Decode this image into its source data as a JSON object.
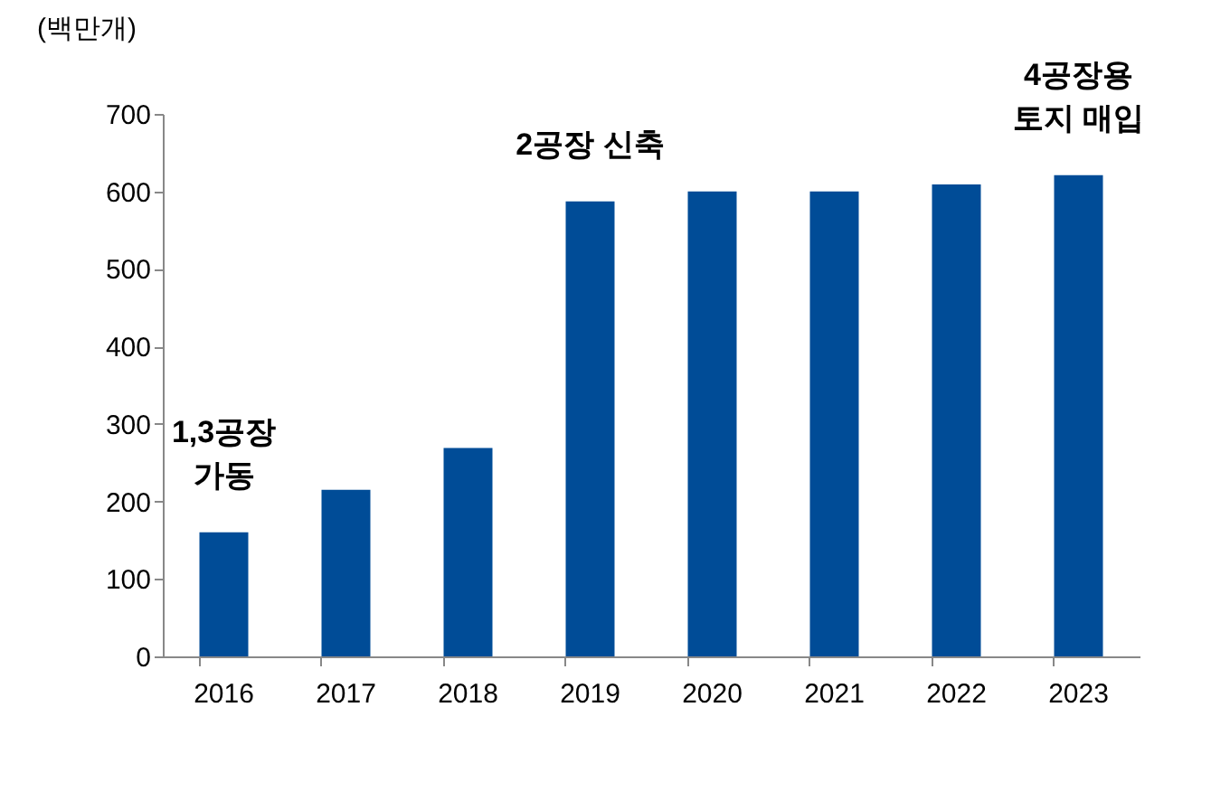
{
  "chart_data": {
    "type": "bar",
    "ylabel": "(백만개)",
    "categories": [
      "2016",
      "2017",
      "2018",
      "2019",
      "2020",
      "2021",
      "2022",
      "2023"
    ],
    "values": [
      160,
      215,
      269,
      587,
      600,
      600,
      609,
      621
    ],
    "color": "#004c97",
    "ylim": [
      0,
      700
    ],
    "yticks": [
      0,
      100,
      200,
      300,
      400,
      500,
      600,
      700
    ],
    "grid": false,
    "annotations": [
      {
        "text": "1,3공장\n가동",
        "x": "2016",
        "y": 160
      },
      {
        "text": "2공장 신축",
        "x": "2019",
        "y": 587
      },
      {
        "text": "4공장용\n토지 매입",
        "x": "2023",
        "y": 621
      }
    ]
  }
}
